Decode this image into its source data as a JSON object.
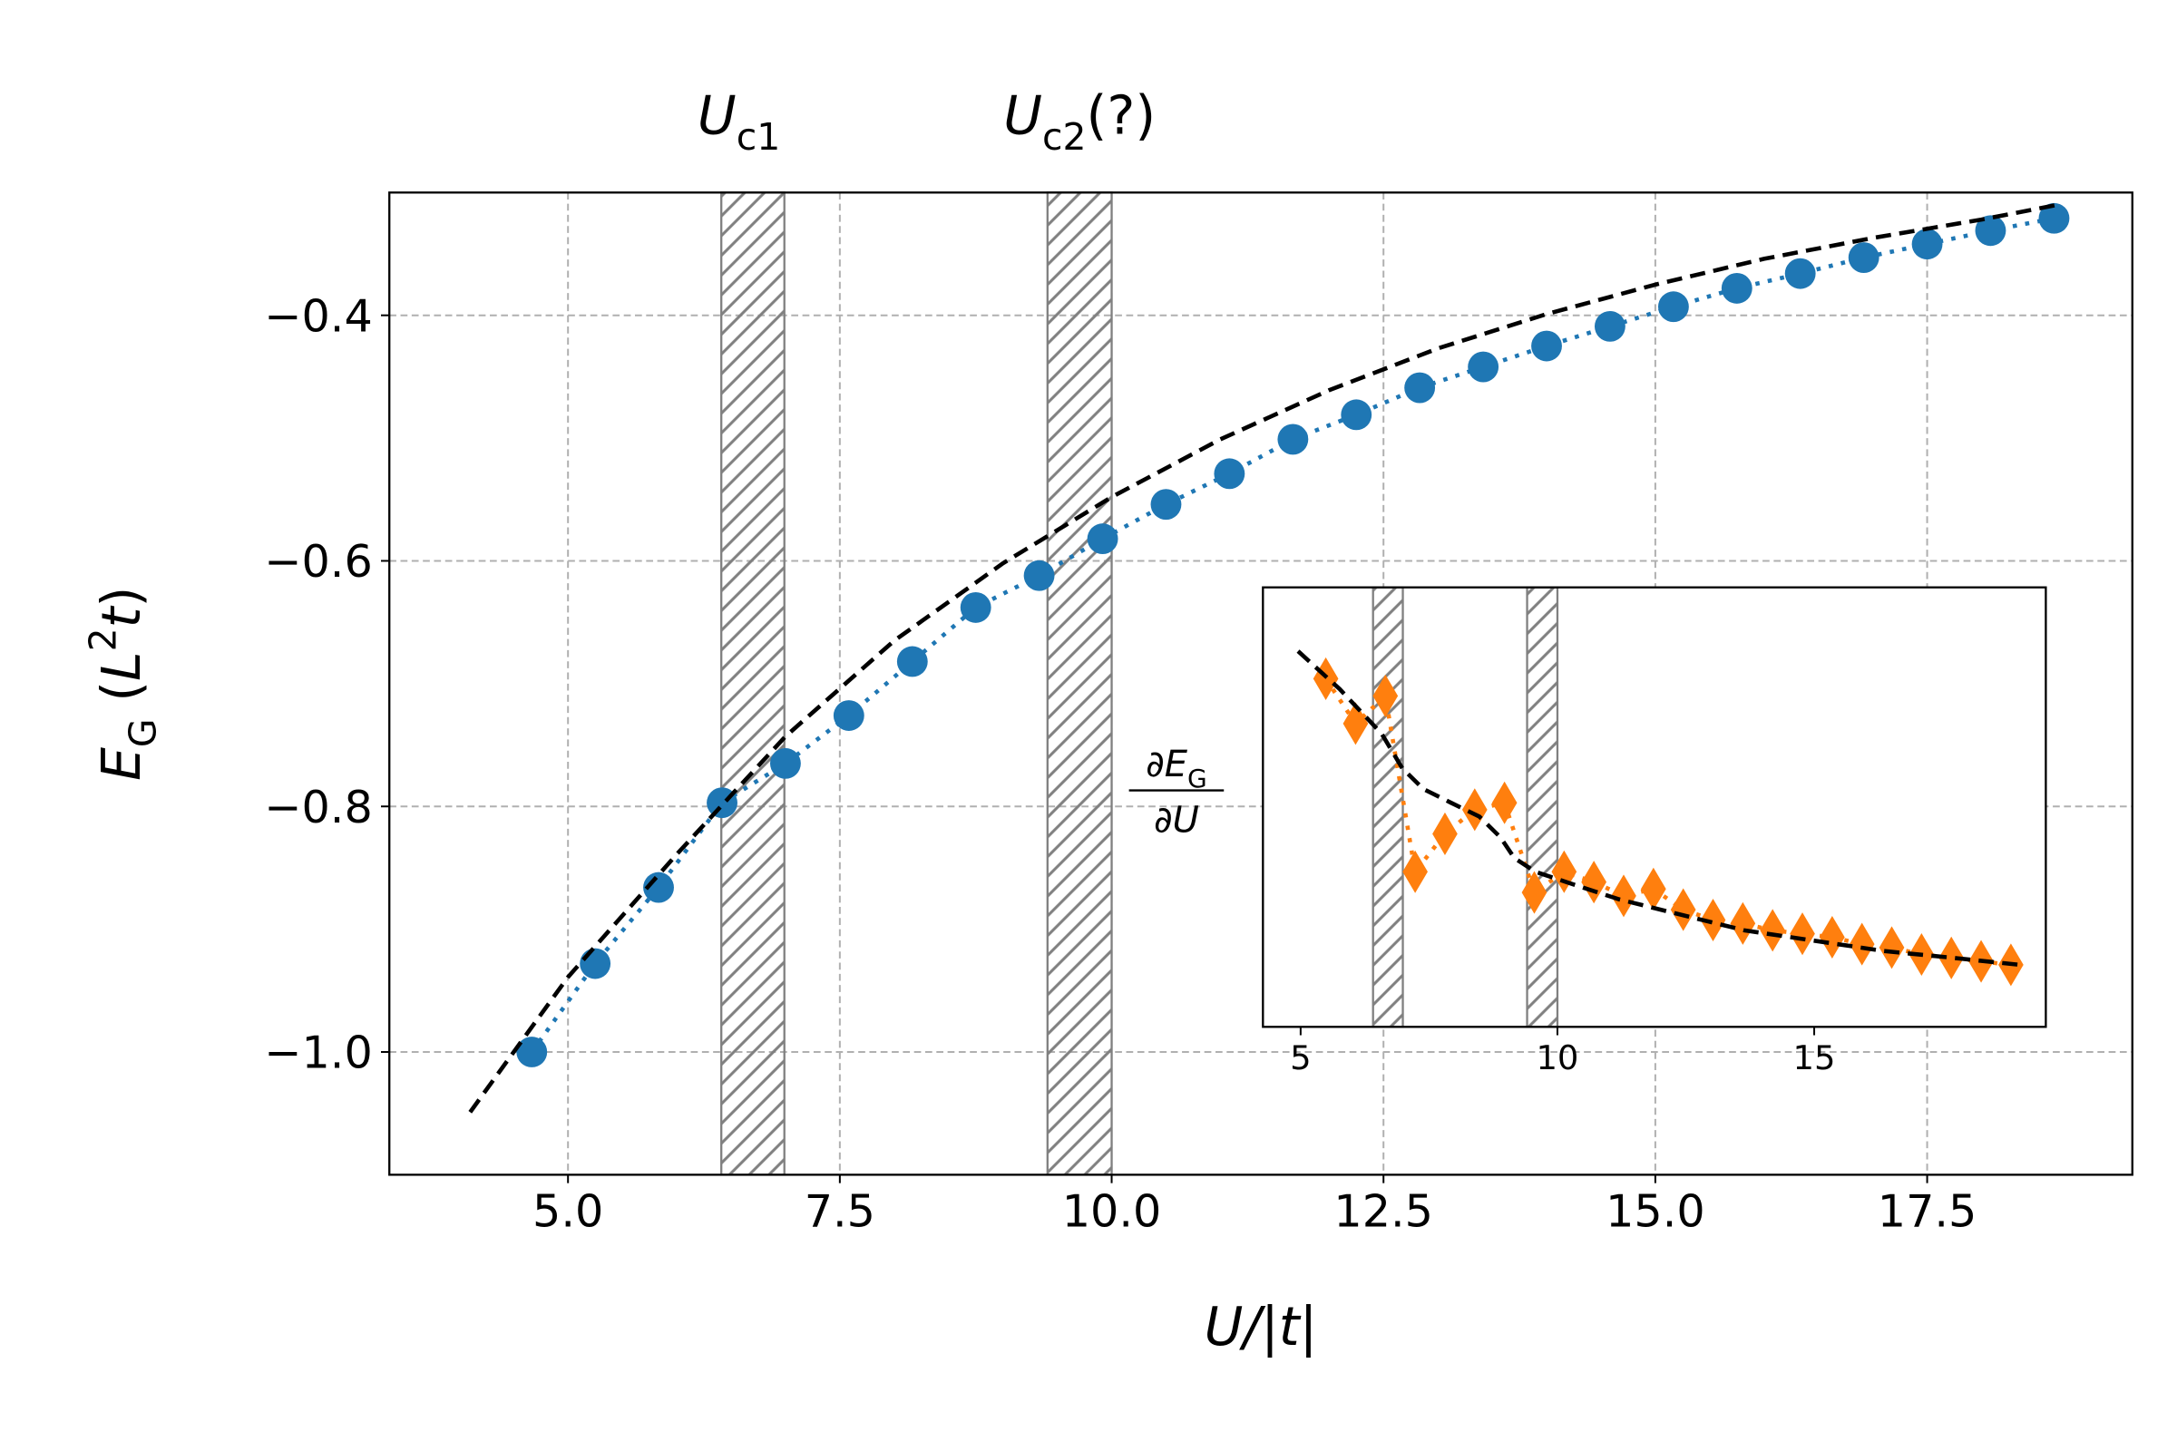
{
  "chart_data": [
    {
      "type": "line",
      "xlabel": [
        {
          "text": "U/|t|",
          "style": "italic"
        }
      ],
      "ylabel": [
        {
          "text": "E",
          "style": "italic"
        },
        {
          "text": "G",
          "style": "sub"
        },
        {
          "text": " ("
        },
        {
          "text": "L",
          "style": "italic"
        },
        {
          "text": "2",
          "style": "sup"
        },
        {
          "text": "t",
          "style": "italic"
        },
        {
          "text": ")"
        }
      ],
      "annotations": [
        [
          {
            "text": "U",
            "style": "italic"
          },
          {
            "text": "c1",
            "style": "sub"
          }
        ],
        [
          {
            "text": "U",
            "style": "italic"
          },
          {
            "text": "c2",
            "style": "sub"
          },
          {
            "text": "(?)"
          }
        ]
      ],
      "bands": [
        [
          6.41,
          6.99
        ],
        [
          9.41,
          10.0
        ]
      ],
      "band_color": "#808080",
      "xlim": [
        3.357,
        19.387
      ],
      "ylim": [
        -1.1,
        -0.3
      ],
      "xticks": [
        {
          "value": 5,
          "label": "5.0"
        },
        7.5,
        {
          "value": 10,
          "label": "10.0"
        },
        12.5,
        {
          "value": 15,
          "label": "15.0"
        },
        17.5
      ],
      "yticks": [
        {
          "value": -1.0,
          "label": "−1.0"
        },
        {
          "value": -0.8,
          "label": "−0.8"
        },
        {
          "value": -0.6,
          "label": "−0.6"
        },
        {
          "value": -0.4,
          "label": "−0.4"
        }
      ],
      "grid": true,
      "series": [
        {
          "color": "#1f77b4",
          "marker": "circle",
          "linestyle": "dotted",
          "x": [
            4.667,
            5.25,
            5.833,
            6.417,
            7.0,
            7.583,
            8.167,
            8.75,
            9.333,
            9.917,
            10.5,
            11.083,
            11.667,
            12.25,
            12.833,
            13.417,
            14.0,
            14.583,
            15.167,
            15.75,
            16.333,
            16.917,
            17.5,
            18.083,
            18.667
          ],
          "values": [
            -1.0,
            -0.928,
            -0.866,
            -0.797,
            -0.765,
            -0.726,
            -0.682,
            -0.638,
            -0.612,
            -0.582,
            -0.554,
            -0.529,
            -0.501,
            -0.481,
            -0.459,
            -0.442,
            -0.425,
            -0.409,
            -0.393,
            -0.378,
            -0.366,
            -0.353,
            -0.342,
            -0.331,
            -0.321
          ]
        },
        {
          "color": "#000000",
          "marker": null,
          "linestyle": "dashed",
          "x": [
            4.1,
            5,
            6,
            7,
            8,
            9,
            10,
            11,
            12,
            13,
            14,
            15,
            16,
            17,
            18,
            18.7
          ],
          "values": [
            -1.049,
            -0.939,
            -0.839,
            -0.743,
            -0.665,
            -0.602,
            -0.548,
            -0.501,
            -0.461,
            -0.427,
            -0.399,
            -0.375,
            -0.354,
            -0.337,
            -0.322,
            -0.31
          ]
        }
      ]
    },
    {
      "type": "line",
      "ylabel": {
        "numerator": [
          {
            "text": "∂E",
            "style": "italic"
          },
          {
            "text": "G",
            "style": "sub"
          }
        ],
        "denominator": [
          {
            "text": "∂U",
            "style": "italic"
          }
        ]
      },
      "bands": [
        [
          6.41,
          6.99
        ],
        [
          9.41,
          10.0
        ]
      ],
      "band_color": "#808080",
      "xlim": [
        4.266,
        19.51
      ],
      "ylim": [
        -0.005,
        0.1225
      ],
      "xticks": [
        5,
        10,
        15
      ],
      "grid": false,
      "series": [
        {
          "color": "#ff7f0e",
          "marker": "diamond",
          "linestyle": "dotted",
          "x": [
            5.49,
            6.07,
            6.65,
            7.23,
            7.81,
            8.39,
            8.97,
            9.55,
            10.13,
            10.71,
            11.29,
            11.87,
            12.45,
            13.03,
            13.61,
            14.19,
            14.77,
            15.35,
            15.93,
            16.51,
            17.09,
            17.67,
            18.25,
            18.83
          ],
          "values": [
            0.096,
            0.083,
            0.091,
            0.04,
            0.051,
            0.058,
            0.06,
            0.034,
            0.04,
            0.037,
            0.033,
            0.035,
            0.029,
            0.026,
            0.025,
            0.023,
            0.022,
            0.021,
            0.019,
            0.018,
            0.016,
            0.015,
            0.014,
            0.013
          ]
        },
        {
          "color": "#000000",
          "marker": null,
          "linestyle": "dashed",
          "x": [
            4.95,
            5.76,
            6.58,
            6.98,
            7.39,
            7.93,
            8.48,
            8.89,
            9.16,
            9.57,
            10.38,
            11.2,
            12.28,
            13.64,
            15.0,
            16.36,
            17.72,
            19.0
          ],
          "values": [
            0.104,
            0.093,
            0.08,
            0.07,
            0.064,
            0.06,
            0.056,
            0.05,
            0.044,
            0.04,
            0.036,
            0.032,
            0.028,
            0.023,
            0.02,
            0.017,
            0.015,
            0.013
          ]
        }
      ]
    }
  ]
}
